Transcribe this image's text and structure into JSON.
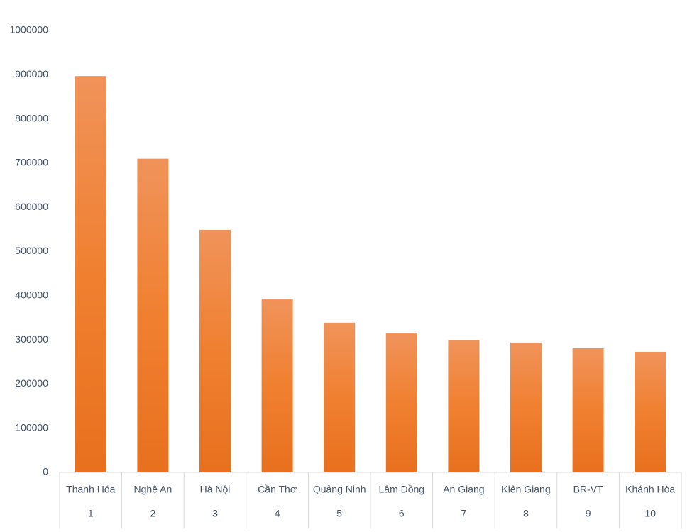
{
  "chart_data": {
    "type": "bar",
    "categories": [
      "Thanh Hóa",
      "Nghệ An",
      "Hà Nội",
      "Cần Thơ",
      "Quảng Ninh",
      "Lâm Đồng",
      "An Giang",
      "Kiên Giang",
      "BR-VT",
      "Khánh Hòa"
    ],
    "ranks": [
      1,
      2,
      3,
      4,
      5,
      6,
      7,
      8,
      9,
      10
    ],
    "values": [
      897000,
      710000,
      549000,
      393000,
      339000,
      316000,
      299000,
      294000,
      281000,
      273000
    ],
    "color": "#ed7d31",
    "ylim": [
      0,
      1000000
    ],
    "yticks": [
      0,
      100000,
      200000,
      300000,
      400000,
      500000,
      600000,
      700000,
      800000,
      900000,
      1000000
    ],
    "grid": false
  }
}
